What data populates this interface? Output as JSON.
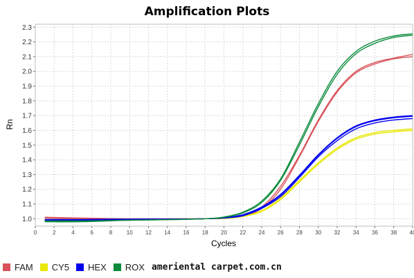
{
  "chart_data": {
    "type": "line",
    "title": "Amplification Plots",
    "xlabel": "Cycles",
    "ylabel": "Rn",
    "xlim": [
      0,
      40
    ],
    "ylim": [
      0.95,
      2.32
    ],
    "x_ticks": [
      "0",
      "2",
      "4",
      "6",
      "8",
      "10",
      "12",
      "14",
      "16",
      "18",
      "20",
      "22",
      "24",
      "26",
      "28",
      "30",
      "32",
      "34",
      "36",
      "38",
      "40"
    ],
    "y_ticks": [
      "1.0",
      "1.1",
      "1.2",
      "1.3",
      "1.4",
      "1.5",
      "1.6",
      "1.7",
      "1.8",
      "1.9",
      "2.0",
      "2.1",
      "2.2",
      "2.3"
    ],
    "grid": true,
    "legend_position": "bottom-left",
    "colors": {
      "FAM": "#d9525a",
      "CY5": "#e8e800",
      "HEX": "#0000ee",
      "ROX": "#0a8a3a"
    },
    "series": [
      {
        "name": "FAM",
        "curves": [
          {
            "x": [
              1,
              5,
              10,
              15,
              18,
              20,
              22,
              24,
              26,
              28,
              30,
              32,
              34,
              36,
              38,
              40
            ],
            "y": [
              1.01,
              1.005,
              1.0,
              1.0,
              1.0,
              1.005,
              1.02,
              1.07,
              1.2,
              1.42,
              1.66,
              1.86,
              1.99,
              2.05,
              2.085,
              2.1
            ]
          },
          {
            "x": [
              1,
              5,
              10,
              15,
              18,
              20,
              22,
              24,
              26,
              28,
              30,
              32,
              34,
              36,
              38,
              40
            ],
            "y": [
              1.005,
              1.0,
              0.998,
              0.998,
              1.0,
              1.006,
              1.025,
              1.08,
              1.22,
              1.43,
              1.67,
              1.87,
              2.0,
              2.06,
              2.09,
              2.115
            ]
          }
        ]
      },
      {
        "name": "CY5",
        "curves": [
          {
            "x": [
              1,
              5,
              10,
              15,
              18,
              20,
              22,
              24,
              26,
              28,
              30,
              32,
              34,
              36,
              38,
              40
            ],
            "y": [
              0.995,
              0.995,
              0.998,
              0.998,
              1.0,
              1.002,
              1.015,
              1.05,
              1.13,
              1.25,
              1.37,
              1.47,
              1.54,
              1.575,
              1.59,
              1.6
            ]
          },
          {
            "x": [
              1,
              5,
              10,
              15,
              18,
              20,
              22,
              24,
              26,
              28,
              30,
              32,
              34,
              36,
              38,
              40
            ],
            "y": [
              0.99,
              0.99,
              0.995,
              0.997,
              1.0,
              1.003,
              1.018,
              1.055,
              1.14,
              1.26,
              1.38,
              1.48,
              1.55,
              1.585,
              1.6,
              1.61
            ]
          }
        ]
      },
      {
        "name": "HEX",
        "curves": [
          {
            "x": [
              1,
              5,
              10,
              15,
              18,
              20,
              22,
              24,
              26,
              28,
              30,
              32,
              34,
              36,
              38,
              40
            ],
            "y": [
              0.99,
              0.99,
              0.995,
              0.997,
              1.0,
              1.005,
              1.02,
              1.07,
              1.15,
              1.28,
              1.42,
              1.53,
              1.61,
              1.65,
              1.67,
              1.68
            ]
          },
          {
            "x": [
              1,
              5,
              10,
              15,
              18,
              20,
              22,
              24,
              26,
              28,
              30,
              32,
              34,
              36,
              38,
              40
            ],
            "y": [
              0.995,
              0.995,
              0.998,
              0.998,
              1.0,
              1.006,
              1.025,
              1.075,
              1.16,
              1.29,
              1.43,
              1.545,
              1.625,
              1.665,
              1.685,
              1.695
            ]
          },
          {
            "x": [
              1,
              5,
              10,
              15,
              18,
              20,
              22,
              24,
              26,
              28,
              30,
              32,
              34,
              36,
              38,
              40
            ],
            "y": [
              0.985,
              0.99,
              0.995,
              0.997,
              1.0,
              1.007,
              1.028,
              1.08,
              1.165,
              1.295,
              1.435,
              1.55,
              1.63,
              1.67,
              1.69,
              1.7
            ]
          }
        ]
      },
      {
        "name": "ROX",
        "curves": [
          {
            "x": [
              1,
              5,
              10,
              15,
              18,
              20,
              22,
              24,
              26,
              28,
              30,
              32,
              34,
              36,
              38,
              40
            ],
            "y": [
              0.985,
              0.985,
              0.99,
              0.995,
              1.0,
              1.01,
              1.04,
              1.11,
              1.26,
              1.5,
              1.76,
              1.98,
              2.12,
              2.19,
              2.23,
              2.245
            ]
          },
          {
            "x": [
              1,
              5,
              10,
              15,
              18,
              20,
              22,
              24,
              26,
              28,
              30,
              32,
              34,
              36,
              38,
              40
            ],
            "y": [
              0.98,
              0.98,
              0.99,
              0.995,
              1.0,
              1.012,
              1.045,
              1.12,
              1.27,
              1.52,
              1.78,
              2.0,
              2.135,
              2.205,
              2.24,
              2.255
            ]
          }
        ]
      }
    ]
  },
  "legend": [
    {
      "name": "FAM",
      "color": "#d9525a"
    },
    {
      "name": "CY5",
      "color": "#e8e800"
    },
    {
      "name": "HEX",
      "color": "#0000ee"
    },
    {
      "name": "ROX",
      "color": "#0a8a3a"
    }
  ],
  "watermark": "ameriental carpet.com.cn"
}
